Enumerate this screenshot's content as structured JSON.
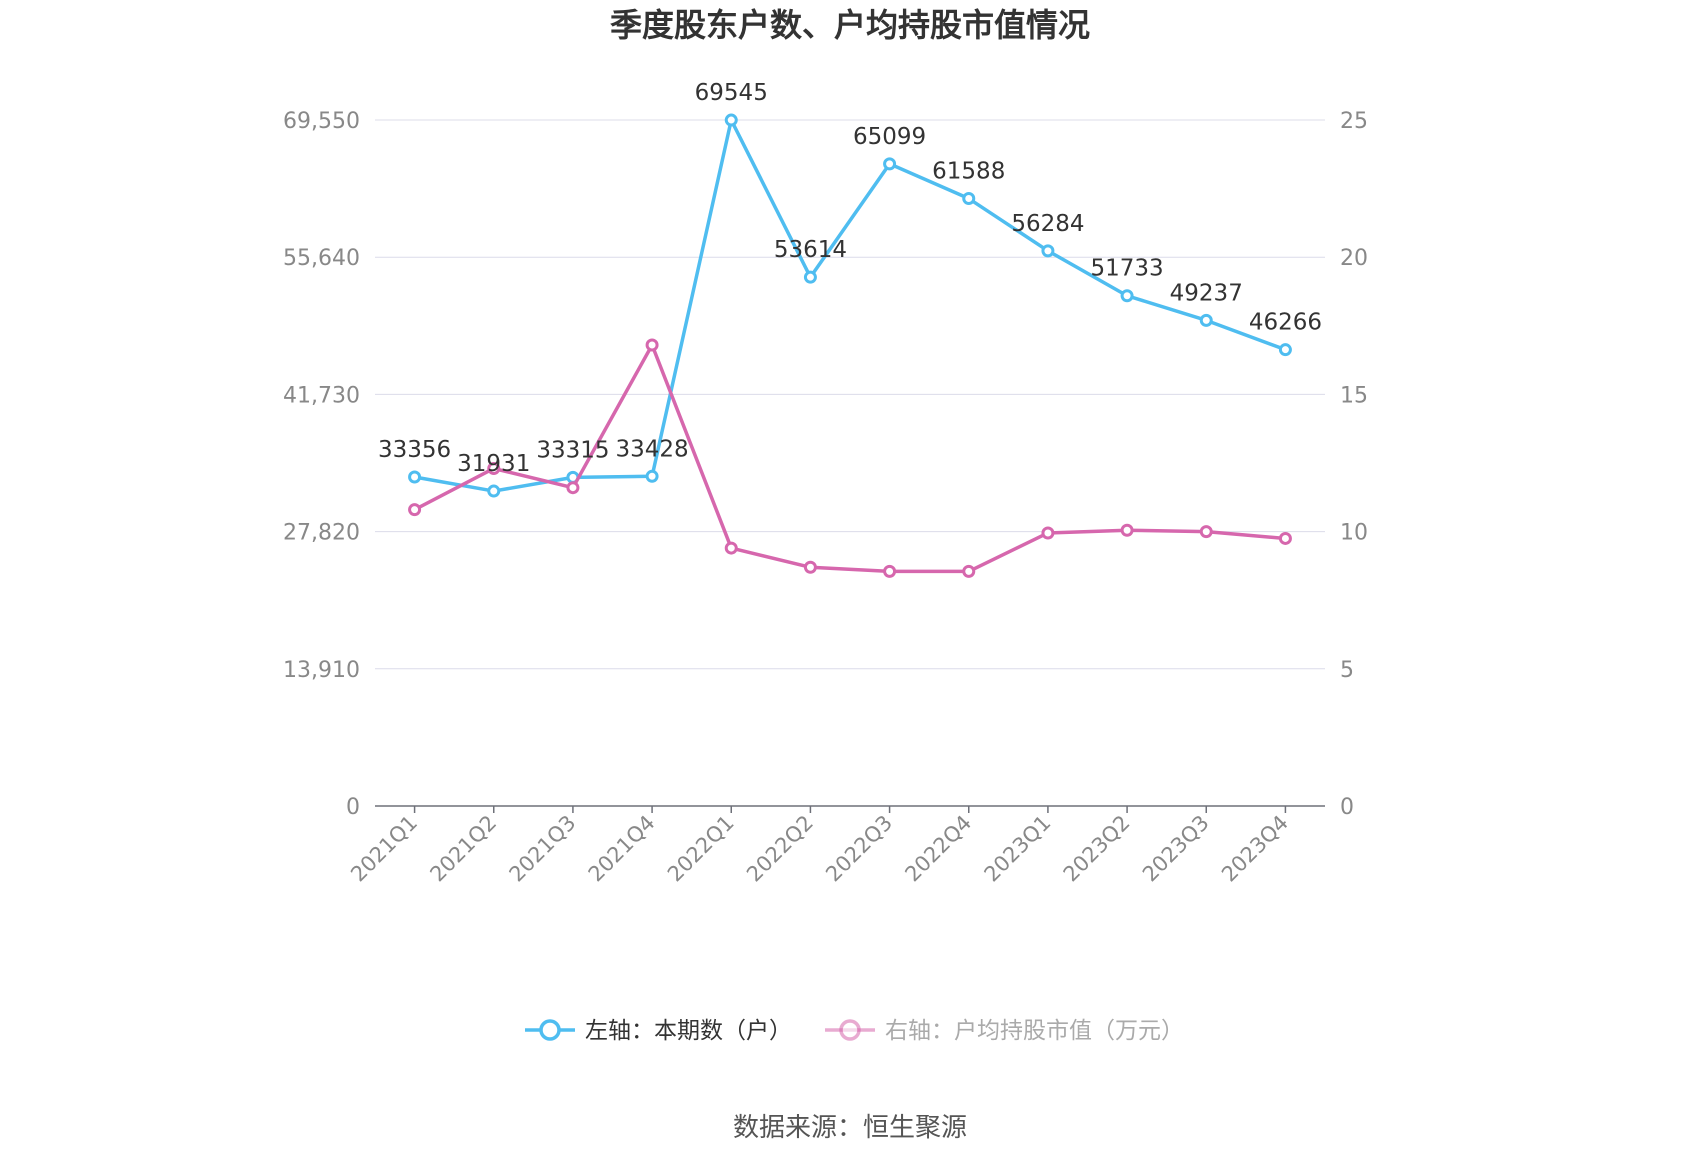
{
  "chart_data": {
    "type": "line",
    "title": "季度股东户数、户均持股市值情况",
    "categories": [
      "2021Q1",
      "2021Q2",
      "2021Q3",
      "2021Q4",
      "2022Q1",
      "2022Q2",
      "2022Q3",
      "2022Q4",
      "2023Q1",
      "2023Q2",
      "2023Q3",
      "2023Q4"
    ],
    "left_axis": {
      "ticks": [
        "0",
        "13,910",
        "27,820",
        "41,730",
        "55,640",
        "69,550"
      ],
      "ylim": [
        0,
        69550
      ]
    },
    "right_axis": {
      "ticks": [
        "0",
        "5",
        "10",
        "15",
        "20",
        "25"
      ],
      "ylim": [
        0,
        25
      ]
    },
    "grid": true,
    "legend_position": "bottom",
    "series": [
      {
        "name": "左轴：本期数（户）",
        "axis": "left",
        "color": "#4fbdf0",
        "values": [
          33356,
          31931,
          33315,
          33428,
          69545,
          53614,
          65099,
          61588,
          56284,
          51733,
          49237,
          46266
        ],
        "labels": [
          "33356",
          "31931",
          "33315",
          "33428",
          "69545",
          "53614",
          "65099",
          "61588",
          "56284",
          "51733",
          "49237",
          "46266"
        ]
      },
      {
        "name": "右轴：户均持股市值（万元）",
        "axis": "right",
        "color": "#d667ad",
        "values": [
          10.8,
          12.3,
          11.6,
          16.8,
          9.4,
          8.7,
          8.55,
          8.55,
          9.95,
          10.05,
          10.0,
          9.75
        ]
      }
    ],
    "source": "数据来源：恒生聚源"
  }
}
